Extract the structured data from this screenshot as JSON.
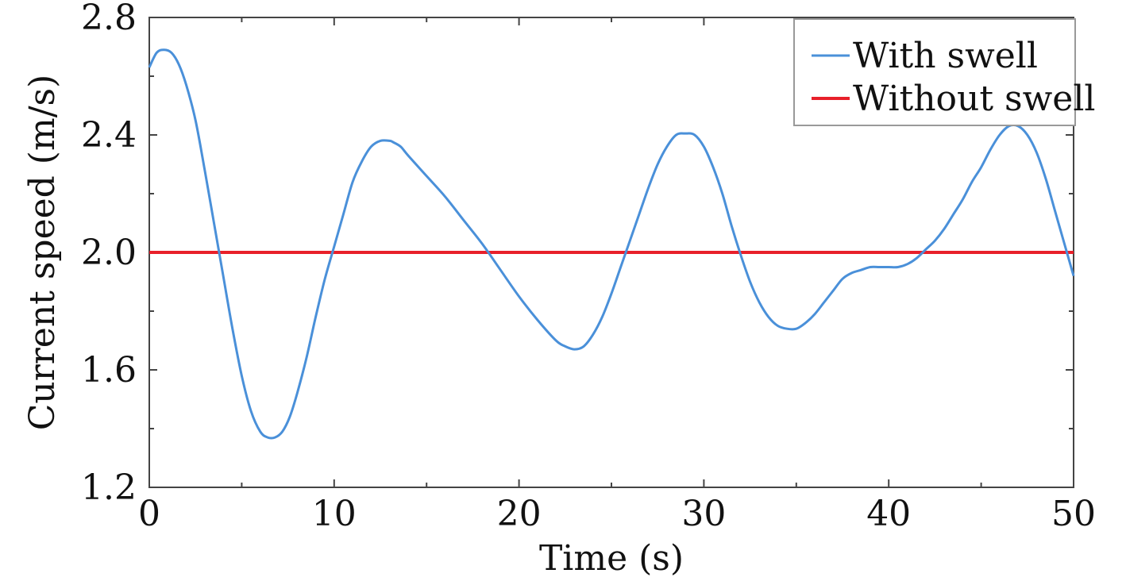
{
  "chart_data": {
    "type": "line",
    "title": "",
    "xlabel": "Time (s)",
    "ylabel": "Current speed (m/s)",
    "xlim": [
      0,
      50
    ],
    "ylim": [
      1.2,
      2.8
    ],
    "x_ticks": [
      0,
      10,
      20,
      30,
      40,
      50
    ],
    "x_tick_labels": [
      "0",
      "10",
      "20",
      "30",
      "40",
      "50"
    ],
    "y_ticks": [
      1.2,
      1.6,
      2.0,
      2.4,
      2.8
    ],
    "y_tick_labels": [
      "1.2",
      "1.6",
      "2.0",
      "2.4",
      "2.8"
    ],
    "grid": false,
    "legend_position": "top-right",
    "series": [
      {
        "name": "With swell",
        "color": "#4a90d9",
        "x": [
          0,
          0.4,
          0.8,
          1.2,
          1.6,
          2.0,
          2.5,
          3.0,
          3.5,
          4.0,
          4.5,
          5.0,
          5.5,
          6.0,
          6.4,
          6.8,
          7.2,
          7.6,
          8.0,
          8.5,
          9.0,
          9.5,
          10.0,
          10.5,
          11.0,
          11.5,
          12.0,
          12.5,
          13.0,
          13.2,
          13.6,
          14.0,
          15.0,
          16.0,
          17.0,
          18.0,
          19.0,
          20.0,
          21.0,
          22.0,
          22.5,
          23.0,
          23.5,
          24.0,
          24.5,
          25.0,
          25.5,
          26.0,
          26.5,
          27.0,
          27.5,
          28.0,
          28.5,
          29.0,
          29.5,
          30.0,
          30.5,
          31.0,
          31.5,
          32.0,
          32.5,
          33.0,
          33.5,
          34.0,
          34.5,
          35.0,
          35.5,
          36.0,
          36.5,
          37.0,
          37.5,
          38.0,
          38.5,
          39.0,
          39.5,
          40.0,
          40.5,
          41.0,
          41.5,
          42.0,
          42.5,
          43.0,
          43.5,
          44.0,
          44.5,
          45.0,
          45.5,
          46.0,
          46.5,
          47.0,
          47.5,
          48.0,
          48.5,
          49.0,
          49.5,
          50.0
        ],
        "values": [
          2.63,
          2.68,
          2.69,
          2.68,
          2.64,
          2.57,
          2.45,
          2.28,
          2.1,
          1.92,
          1.74,
          1.58,
          1.46,
          1.39,
          1.37,
          1.37,
          1.39,
          1.44,
          1.52,
          1.64,
          1.78,
          1.91,
          2.02,
          2.13,
          2.24,
          2.31,
          2.36,
          2.38,
          2.38,
          2.375,
          2.36,
          2.33,
          2.26,
          2.19,
          2.11,
          2.03,
          1.94,
          1.85,
          1.77,
          1.7,
          1.68,
          1.67,
          1.68,
          1.72,
          1.78,
          1.86,
          1.95,
          2.04,
          2.13,
          2.22,
          2.3,
          2.36,
          2.4,
          2.405,
          2.4,
          2.36,
          2.29,
          2.2,
          2.09,
          1.99,
          1.9,
          1.83,
          1.78,
          1.75,
          1.74,
          1.74,
          1.76,
          1.79,
          1.83,
          1.87,
          1.91,
          1.93,
          1.94,
          1.95,
          1.95,
          1.95,
          1.95,
          1.96,
          1.98,
          2.01,
          2.04,
          2.08,
          2.13,
          2.18,
          2.24,
          2.29,
          2.35,
          2.4,
          2.43,
          2.43,
          2.4,
          2.34,
          2.25,
          2.14,
          2.03,
          1.92
        ]
      },
      {
        "name": "Without swell",
        "color": "#e8202a",
        "x": [
          0,
          50
        ],
        "values": [
          2.0,
          2.0
        ]
      }
    ]
  }
}
